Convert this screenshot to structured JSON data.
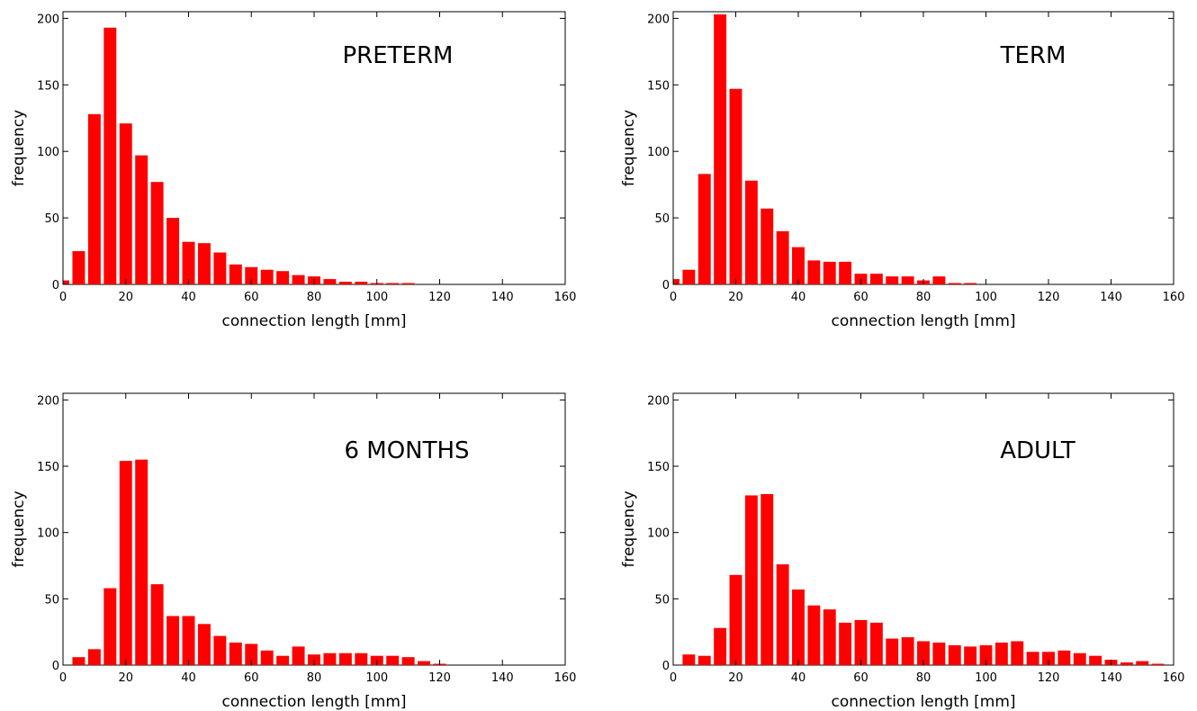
{
  "chart_data": [
    {
      "type": "bar",
      "title": "PRETERM",
      "xlabel": "connection length [mm]",
      "ylabel": "frequency",
      "xlim": [
        0,
        160
      ],
      "ylim": [
        0,
        205
      ],
      "xticks": [
        0,
        20,
        40,
        60,
        80,
        100,
        120,
        140,
        160
      ],
      "yticks": [
        0,
        50,
        100,
        150,
        200
      ],
      "bar_width": 4,
      "color": "#ff0000",
      "x": [
        0,
        5,
        10,
        15,
        20,
        25,
        30,
        35,
        40,
        45,
        50,
        55,
        60,
        65,
        70,
        75,
        80,
        85,
        90,
        95,
        100,
        105,
        110
      ],
      "values": [
        3,
        25,
        128,
        193,
        121,
        97,
        77,
        50,
        32,
        31,
        24,
        15,
        13,
        11,
        10,
        7,
        6,
        4,
        2,
        2,
        1,
        1,
        1
      ]
    },
    {
      "type": "bar",
      "title": "TERM",
      "xlabel": "connection length [mm]",
      "ylabel": "frequency",
      "xlim": [
        0,
        160
      ],
      "ylim": [
        0,
        205
      ],
      "xticks": [
        0,
        20,
        40,
        60,
        80,
        100,
        120,
        140,
        160
      ],
      "yticks": [
        0,
        50,
        100,
        150,
        200
      ],
      "bar_width": 4,
      "color": "#ff0000",
      "x": [
        0,
        5,
        10,
        15,
        20,
        25,
        30,
        35,
        40,
        45,
        50,
        55,
        60,
        65,
        70,
        75,
        80,
        85,
        90,
        95
      ],
      "values": [
        4,
        11,
        83,
        203,
        147,
        78,
        57,
        40,
        28,
        18,
        17,
        17,
        8,
        8,
        6,
        6,
        3,
        6,
        1,
        1
      ]
    },
    {
      "type": "bar",
      "title": "6 MONTHS",
      "xlabel": "connection length [mm]",
      "ylabel": "frequency",
      "xlim": [
        0,
        160
      ],
      "ylim": [
        0,
        205
      ],
      "xticks": [
        0,
        20,
        40,
        60,
        80,
        100,
        120,
        140,
        160
      ],
      "yticks": [
        0,
        50,
        100,
        150,
        200
      ],
      "bar_width": 4,
      "color": "#ff0000",
      "x": [
        5,
        10,
        15,
        20,
        25,
        30,
        35,
        40,
        45,
        50,
        55,
        60,
        65,
        70,
        75,
        80,
        85,
        90,
        95,
        100,
        105,
        110,
        115,
        120
      ],
      "values": [
        6,
        12,
        58,
        154,
        155,
        61,
        37,
        37,
        31,
        22,
        17,
        16,
        11,
        7,
        14,
        8,
        9,
        9,
        9,
        7,
        7,
        6,
        3,
        1
      ]
    },
    {
      "type": "bar",
      "title": "ADULT",
      "xlabel": "connection length [mm]",
      "ylabel": "frequency",
      "xlim": [
        0,
        160
      ],
      "ylim": [
        0,
        205
      ],
      "xticks": [
        0,
        20,
        40,
        60,
        80,
        100,
        120,
        140,
        160
      ],
      "yticks": [
        0,
        50,
        100,
        150,
        200
      ],
      "bar_width": 4,
      "color": "#ff0000",
      "x": [
        5,
        10,
        15,
        20,
        25,
        30,
        35,
        40,
        45,
        50,
        55,
        60,
        65,
        70,
        75,
        80,
        85,
        90,
        95,
        100,
        105,
        110,
        115,
        120,
        125,
        130,
        135,
        140,
        145,
        150,
        155
      ],
      "values": [
        8,
        7,
        28,
        68,
        128,
        129,
        76,
        57,
        45,
        42,
        32,
        34,
        32,
        20,
        21,
        18,
        17,
        15,
        14,
        15,
        17,
        18,
        10,
        10,
        11,
        9,
        7,
        4,
        2,
        3,
        1
      ]
    }
  ]
}
